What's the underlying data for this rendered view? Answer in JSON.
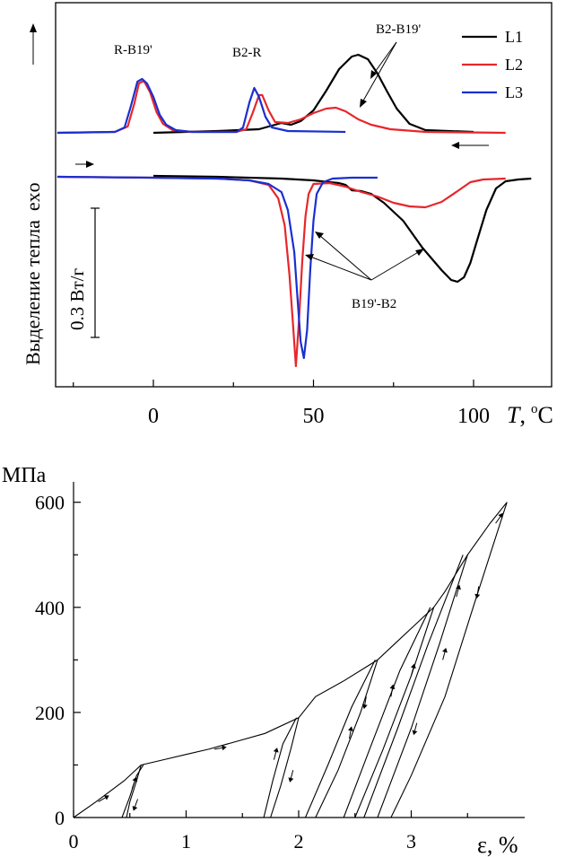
{
  "colors": {
    "L1": "#000000",
    "L2": "#e8262b",
    "L3": "#1a2fd0"
  },
  "chart_data": [
    {
      "type": "line",
      "xlabel": "T, °C",
      "xlabel_parts": {
        "var": "T",
        "sep": ",",
        "unit_sup": "o",
        "unit": "C"
      },
      "ylabel": "Выделение тепла",
      "ylabel_exo": "exo",
      "xlim": [
        -30,
        120
      ],
      "xticks": [
        0,
        50,
        100
      ],
      "xtick_labels": [
        "0",
        "50",
        "100"
      ],
      "scale_bar_label": "0.3 Вт/г",
      "annotations": [
        "R-B19'",
        "B2-R",
        "B2-B19'",
        "B19'-B2"
      ],
      "legend": {
        "position": "top-right",
        "entries": [
          "L1",
          "L2",
          "L3"
        ]
      },
      "series": [
        {
          "name": "L1",
          "color": "#000000",
          "branch": "cooling",
          "points": [
            [
              0,
              0
            ],
            [
              20,
              0.02
            ],
            [
              33,
              0.04
            ],
            [
              36,
              0.07
            ],
            [
              38,
              0.09
            ],
            [
              40,
              0.11
            ],
            [
              43,
              0.09
            ],
            [
              46,
              0.13
            ],
            [
              50,
              0.25
            ],
            [
              54,
              0.47
            ],
            [
              58,
              0.71
            ],
            [
              62,
              0.85
            ],
            [
              64,
              0.87
            ],
            [
              67,
              0.82
            ],
            [
              70,
              0.66
            ],
            [
              73,
              0.46
            ],
            [
              76,
              0.27
            ],
            [
              80,
              0.1
            ],
            [
              85,
              0.03
            ],
            [
              100,
              0.01
            ]
          ]
        },
        {
          "name": "L2",
          "color": "#e8262b",
          "branch": "cooling",
          "points": [
            [
              -30,
              0
            ],
            [
              -12,
              0.01
            ],
            [
              -8,
              0.07
            ],
            [
              -6,
              0.32
            ],
            [
              -4.5,
              0.55
            ],
            [
              -3,
              0.58
            ],
            [
              -1,
              0.45
            ],
            [
              1,
              0.23
            ],
            [
              3,
              0.1
            ],
            [
              6,
              0.03
            ],
            [
              12,
              0.01
            ],
            [
              26,
              0.01
            ],
            [
              29,
              0.04
            ],
            [
              31,
              0.22
            ],
            [
              33,
              0.42
            ],
            [
              34,
              0.42
            ],
            [
              36,
              0.25
            ],
            [
              38,
              0.12
            ],
            [
              42,
              0.11
            ],
            [
              46,
              0.15
            ],
            [
              50,
              0.22
            ],
            [
              54,
              0.27
            ],
            [
              57,
              0.28
            ],
            [
              60,
              0.24
            ],
            [
              64,
              0.15
            ],
            [
              68,
              0.09
            ],
            [
              74,
              0.04
            ],
            [
              85,
              0.01
            ],
            [
              110,
              0
            ]
          ]
        },
        {
          "name": "L3",
          "color": "#1a2fd0",
          "branch": "cooling",
          "points": [
            [
              -30,
              0
            ],
            [
              -12,
              0.01
            ],
            [
              -9,
              0.06
            ],
            [
              -7,
              0.3
            ],
            [
              -5,
              0.57
            ],
            [
              -3.5,
              0.6
            ],
            [
              -2,
              0.55
            ],
            [
              0,
              0.4
            ],
            [
              2,
              0.2
            ],
            [
              4,
              0.09
            ],
            [
              7,
              0.03
            ],
            [
              12,
              0.01
            ],
            [
              26,
              0.01
            ],
            [
              28,
              0.06
            ],
            [
              30,
              0.34
            ],
            [
              31.5,
              0.5
            ],
            [
              33,
              0.4
            ],
            [
              35,
              0.18
            ],
            [
              37,
              0.06
            ],
            [
              42,
              0.02
            ],
            [
              60,
              0.01
            ]
          ]
        },
        {
          "name": "L1",
          "color": "#000000",
          "branch": "heating",
          "points": [
            [
              0,
              0
            ],
            [
              20,
              -0.01
            ],
            [
              40,
              -0.03
            ],
            [
              50,
              -0.05
            ],
            [
              55,
              -0.07
            ],
            [
              58,
              -0.08
            ],
            [
              60,
              -0.1
            ],
            [
              62,
              -0.16
            ],
            [
              65,
              -0.17
            ],
            [
              68,
              -0.2
            ],
            [
              72,
              -0.3
            ],
            [
              78,
              -0.5
            ],
            [
              84,
              -0.8
            ],
            [
              90,
              -1.05
            ],
            [
              93,
              -1.16
            ],
            [
              95,
              -1.18
            ],
            [
              97,
              -1.13
            ],
            [
              99,
              -0.97
            ],
            [
              101,
              -0.73
            ],
            [
              104,
              -0.38
            ],
            [
              107,
              -0.14
            ],
            [
              110,
              -0.06
            ],
            [
              114,
              -0.04
            ],
            [
              118,
              -0.03
            ]
          ]
        },
        {
          "name": "L2",
          "color": "#e8262b",
          "branch": "heating",
          "points": [
            [
              -30,
              -0.01
            ],
            [
              0,
              -0.02
            ],
            [
              20,
              -0.03
            ],
            [
              30,
              -0.05
            ],
            [
              36,
              -0.1
            ],
            [
              39,
              -0.25
            ],
            [
              41,
              -0.55
            ],
            [
              42.5,
              -1.1
            ],
            [
              43.5,
              -1.6
            ],
            [
              44.5,
              -2.12
            ],
            [
              45.5,
              -1.6
            ],
            [
              46.5,
              -0.95
            ],
            [
              47.5,
              -0.45
            ],
            [
              48.5,
              -0.2
            ],
            [
              50,
              -0.09
            ],
            [
              55,
              -0.08
            ],
            [
              60,
              -0.12
            ],
            [
              65,
              -0.18
            ],
            [
              70,
              -0.23
            ],
            [
              75,
              -0.3
            ],
            [
              80,
              -0.34
            ],
            [
              85,
              -0.35
            ],
            [
              90,
              -0.29
            ],
            [
              95,
              -0.17
            ],
            [
              99,
              -0.07
            ],
            [
              103,
              -0.04
            ],
            [
              110,
              -0.03
            ]
          ]
        },
        {
          "name": "L3",
          "color": "#1a2fd0",
          "branch": "heating",
          "points": [
            [
              -30,
              -0.01
            ],
            [
              0,
              -0.02
            ],
            [
              20,
              -0.03
            ],
            [
              30,
              -0.05
            ],
            [
              36,
              -0.09
            ],
            [
              40,
              -0.18
            ],
            [
              42,
              -0.38
            ],
            [
              44,
              -0.85
            ],
            [
              45,
              -1.35
            ],
            [
              46,
              -1.85
            ],
            [
              47,
              -2.03
            ],
            [
              48,
              -1.72
            ],
            [
              49,
              -1.05
            ],
            [
              50,
              -0.5
            ],
            [
              51,
              -0.2
            ],
            [
              53,
              -0.07
            ],
            [
              56,
              -0.03
            ],
            [
              62,
              -0.02
            ],
            [
              70,
              -0.02
            ]
          ]
        }
      ]
    },
    {
      "type": "line",
      "xlabel": "ε, %",
      "ylabel": "МПа",
      "xlim": [
        0,
        4
      ],
      "ylim": [
        0,
        620
      ],
      "xticks": [
        0,
        1,
        2,
        3
      ],
      "xtick_labels": [
        "0",
        "1",
        "2",
        "3"
      ],
      "yticks": [
        0,
        200,
        400,
        600
      ],
      "ytick_labels": [
        "0",
        "200",
        "400",
        "600"
      ],
      "loading_path": [
        [
          0,
          0
        ],
        [
          0.2,
          30
        ],
        [
          0.45,
          70
        ],
        [
          0.6,
          100
        ],
        [
          0.8,
          110
        ],
        [
          1.0,
          120
        ],
        [
          1.2,
          130
        ],
        [
          1.45,
          145
        ],
        [
          1.7,
          160
        ],
        [
          2.0,
          190
        ],
        [
          2.15,
          230
        ],
        [
          2.4,
          260
        ],
        [
          2.7,
          300
        ],
        [
          2.85,
          330
        ],
        [
          3.05,
          370
        ],
        [
          3.2,
          400
        ],
        [
          3.3,
          430
        ],
        [
          3.5,
          500
        ],
        [
          3.7,
          560
        ],
        [
          3.85,
          600
        ]
      ],
      "cycles": [
        {
          "peak": [
            0.6,
            100
          ],
          "unloading": [
            [
              0.6,
              100
            ],
            [
              0.56,
              70
            ],
            [
              0.5,
              30
            ],
            [
              0.47,
              0
            ]
          ],
          "reloading": [
            [
              0.43,
              0
            ],
            [
              0.5,
              40
            ],
            [
              0.56,
              80
            ],
            [
              0.62,
              100
            ]
          ]
        },
        {
          "peak": [
            2.0,
            190
          ],
          "unloading": [
            [
              2.0,
              190
            ],
            [
              1.93,
              130
            ],
            [
              1.84,
              60
            ],
            [
              1.75,
              0
            ]
          ],
          "reloading": [
            [
              1.69,
              0
            ],
            [
              1.77,
              70
            ],
            [
              1.86,
              140
            ],
            [
              1.98,
              190
            ]
          ]
        },
        {
          "peak": [
            2.7,
            300
          ],
          "unloading": [
            [
              2.7,
              300
            ],
            [
              2.55,
              200
            ],
            [
              2.35,
              90
            ],
            [
              2.15,
              0
            ]
          ],
          "reloading": [
            [
              2.06,
              0
            ],
            [
              2.26,
              100
            ],
            [
              2.47,
              210
            ],
            [
              2.68,
              300
            ]
          ]
        },
        {
          "peak": [
            3.2,
            400
          ],
          "unloading": [
            [
              3.2,
              400
            ],
            [
              3.0,
              270
            ],
            [
              2.75,
              130
            ],
            [
              2.5,
              0
            ]
          ],
          "reloading": [
            [
              2.4,
              0
            ],
            [
              2.63,
              130
            ],
            [
              2.9,
              280
            ],
            [
              3.17,
              400
            ]
          ]
        },
        {
          "peak": [
            3.5,
            500
          ],
          "unloading": [
            [
              3.5,
              500
            ],
            [
              3.25,
              330
            ],
            [
              3.0,
              170
            ],
            [
              2.7,
              0
            ]
          ],
          "reloading": [
            [
              2.58,
              0
            ],
            [
              2.88,
              170
            ],
            [
              3.15,
              330
            ],
            [
              3.46,
              500
            ]
          ]
        },
        {
          "peak": [
            3.85,
            600
          ],
          "unloading": [
            [
              3.85,
              600
            ],
            [
              3.55,
              400
            ],
            [
              3.3,
              230
            ],
            [
              3.0,
              80
            ],
            [
              2.82,
              0
            ]
          ]
        }
      ]
    }
  ]
}
